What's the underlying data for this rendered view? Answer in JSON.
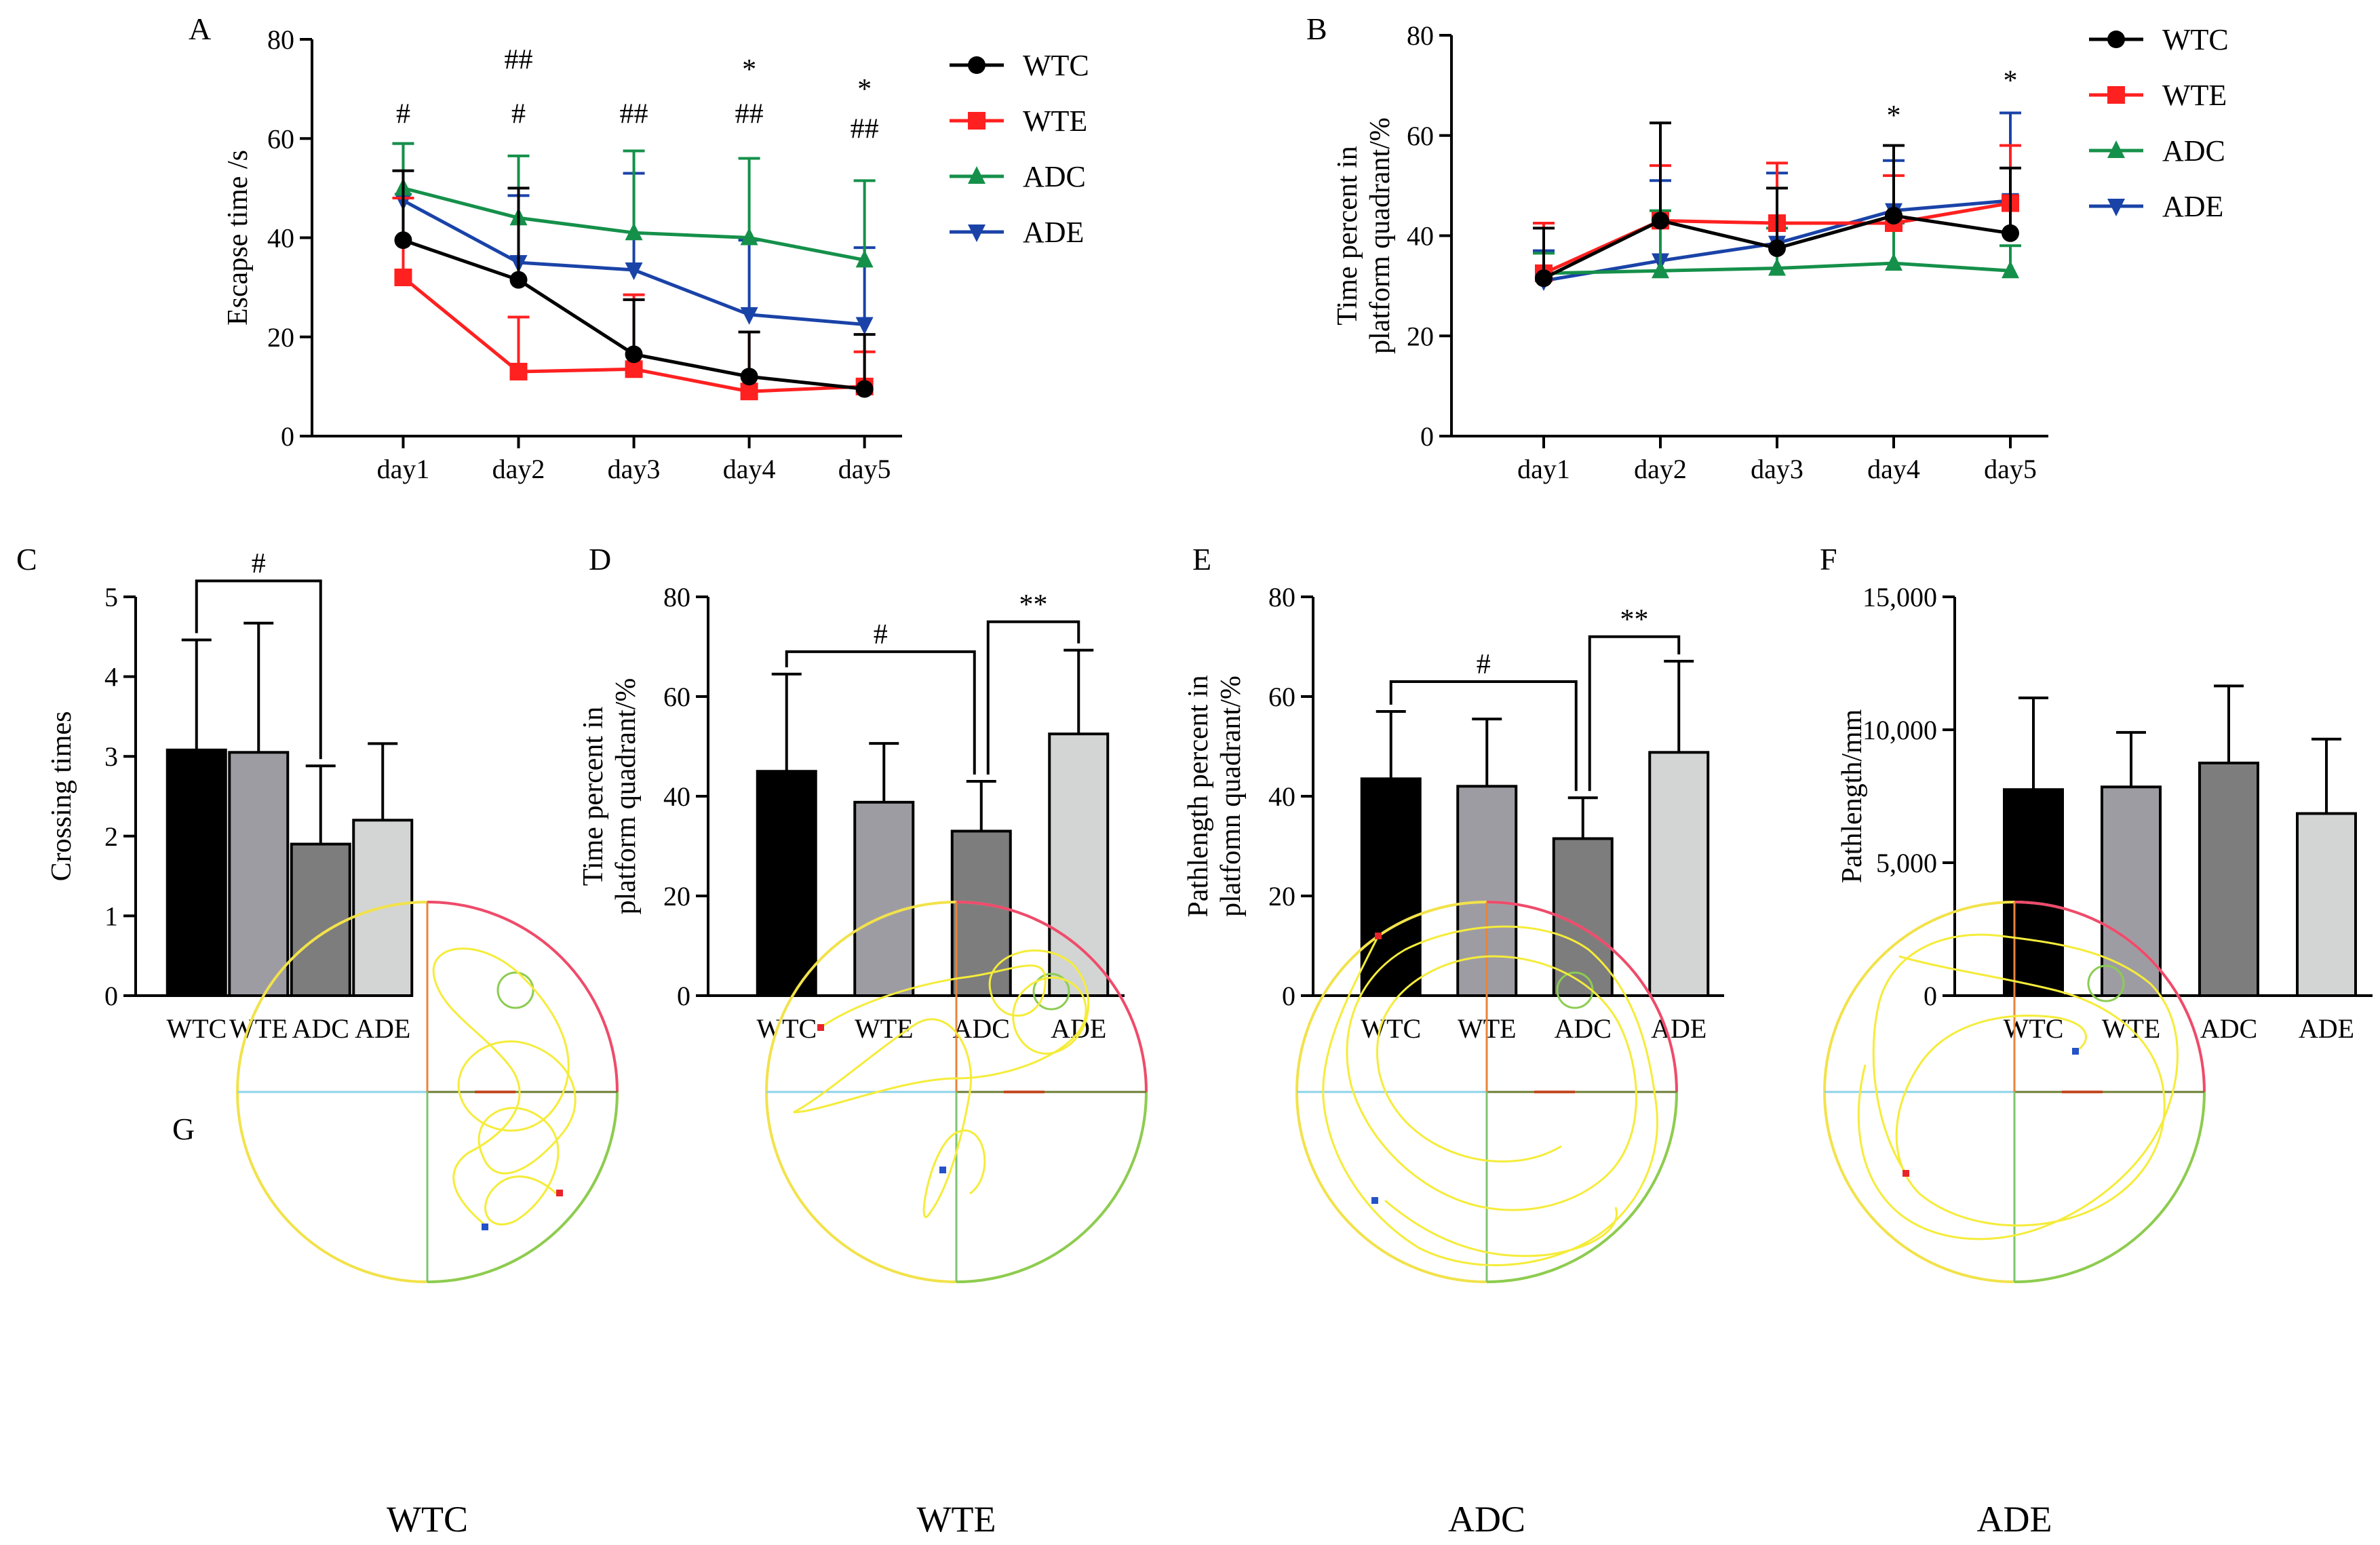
{
  "colors": {
    "WTC": "#000000",
    "WTE": "#ff2020",
    "ADC": "#15904a",
    "ADE": "#1a43a8",
    "bar_WTC": "#000000",
    "bar_WTE": "#9e9ca3",
    "bar_ADC": "#7d7d7d",
    "bar_ADE": "#d2d5d3",
    "maze_outline": "#f2e24a",
    "maze_track": "#f5ec3a"
  },
  "panels": {
    "A": "A",
    "B": "B",
    "C": "C",
    "D": "D",
    "E": "E",
    "F": "F",
    "G": "G"
  },
  "chart_data": [
    {
      "id": "A",
      "type": "line",
      "title": "",
      "xlabel": "",
      "ylabel": "Escapse time /s",
      "x": [
        "day1",
        "day2",
        "day3",
        "day4",
        "day5"
      ],
      "ylim": [
        0,
        80
      ],
      "yticks": [
        "0",
        "20",
        "40",
        "60",
        "80"
      ],
      "legend": "right",
      "series": [
        {
          "name": "WTC",
          "marker": "circle",
          "values": [
            39.5,
            31.5,
            16.5,
            12,
            9.5
          ],
          "err": [
            14,
            18.5,
            11,
            9,
            11
          ]
        },
        {
          "name": "WTE",
          "marker": "square",
          "values": [
            32,
            13,
            13.5,
            9,
            10
          ],
          "err": [
            16,
            11,
            15,
            12,
            7
          ]
        },
        {
          "name": "ADC",
          "marker": "triangle-up",
          "values": [
            50,
            44,
            41,
            40,
            35.5
          ],
          "err": [
            9,
            12.5,
            16.5,
            16,
            16
          ]
        },
        {
          "name": "ADE",
          "marker": "triangle-down",
          "values": [
            47.5,
            35,
            33.5,
            24.5,
            22.5
          ],
          "err": [
            11.5,
            13.5,
            19.5,
            15,
            15.5
          ]
        }
      ],
      "annotations": [
        {
          "x": "day1",
          "y": 65,
          "text": "#"
        },
        {
          "x": "day2",
          "y": 76,
          "text": "##"
        },
        {
          "x": "day2",
          "y": 65,
          "text": "#"
        },
        {
          "x": "day3",
          "y": 65,
          "text": "##"
        },
        {
          "x": "day4",
          "y": 74,
          "text": "*"
        },
        {
          "x": "day4",
          "y": 65,
          "text": "##"
        },
        {
          "x": "day5",
          "y": 70,
          "text": "*"
        },
        {
          "x": "day5",
          "y": 62,
          "text": "##"
        }
      ]
    },
    {
      "id": "B",
      "type": "line",
      "title": "",
      "xlabel": "",
      "ylabel_lines": [
        "Time percent in",
        "platform quadrant/%"
      ],
      "x": [
        "day1",
        "day2",
        "day3",
        "day4",
        "day5"
      ],
      "ylim": [
        0,
        80
      ],
      "yticks": [
        "0",
        "20",
        "40",
        "60",
        "80"
      ],
      "legend": "right",
      "series": [
        {
          "name": "WTC",
          "marker": "circle",
          "values": [
            31.5,
            43,
            37.5,
            44,
            40.5
          ],
          "err": [
            10,
            19.5,
            12,
            14,
            13
          ]
        },
        {
          "name": "WTE",
          "marker": "square",
          "values": [
            32.5,
            43,
            42.5,
            42.5,
            46.5
          ],
          "err": [
            10,
            11,
            12,
            9.5,
            11.5
          ]
        },
        {
          "name": "ADC",
          "marker": "triangle-up",
          "values": [
            32.5,
            33,
            33.5,
            34.5,
            33
          ],
          "err": [
            4,
            12,
            8,
            8,
            5
          ]
        },
        {
          "name": "ADE",
          "marker": "triangle-down",
          "values": [
            31,
            35,
            38.5,
            45,
            47
          ],
          "err": [
            6,
            16,
            14,
            10,
            17.5
          ]
        }
      ],
      "annotations": [
        {
          "x": "day4",
          "y": 64,
          "text": "*"
        },
        {
          "x": "day5",
          "y": 71,
          "text": "*"
        }
      ]
    },
    {
      "id": "C",
      "type": "bar",
      "ylabel": "Crossing times",
      "categories": [
        "WTC",
        "WTE",
        "ADC",
        "ADE"
      ],
      "values": [
        3.08,
        3.05,
        1.9,
        2.2
      ],
      "err": [
        1.38,
        1.62,
        0.98,
        0.96
      ],
      "ylim": [
        0,
        5
      ],
      "yticks": [
        "0",
        "1",
        "2",
        "3",
        "4",
        "5"
      ],
      "brackets": [
        {
          "from": "WTC",
          "to": "ADC",
          "y": 5.2,
          "text": "#"
        }
      ]
    },
    {
      "id": "D",
      "type": "bar",
      "ylabel_lines": [
        "Time percent in",
        "platform quadrant/%"
      ],
      "categories": [
        "WTC",
        "WTE",
        "ADC",
        "ADE"
      ],
      "values": [
        45,
        38.8,
        33,
        52.5
      ],
      "err": [
        19.5,
        11.8,
        10,
        16.8
      ],
      "ylim": [
        0,
        80
      ],
      "yticks": [
        "0",
        "20",
        "40",
        "60",
        "80"
      ],
      "brackets": [
        {
          "from": "WTC",
          "to": "ADC",
          "y": 69,
          "text": "#"
        },
        {
          "from": "ADC",
          "to": "ADE",
          "y": 75,
          "text": "**"
        }
      ]
    },
    {
      "id": "E",
      "type": "bar",
      "ylabel_lines": [
        "Pathlength percent in",
        "platfomn quadrant/%"
      ],
      "categories": [
        "WTC",
        "WTE",
        "ADC",
        "ADE"
      ],
      "values": [
        43.5,
        42,
        31.5,
        48.8
      ],
      "err": [
        13.5,
        13.5,
        8.2,
        18.3
      ],
      "ylim": [
        0,
        80
      ],
      "yticks": [
        "0",
        "20",
        "40",
        "60",
        "80"
      ],
      "brackets": [
        {
          "from": "WTC",
          "to": "ADC",
          "y": 63,
          "text": "#"
        },
        {
          "from": "ADC",
          "to": "ADE",
          "y": 72,
          "text": "**"
        }
      ]
    },
    {
      "id": "F",
      "type": "bar",
      "ylabel": "Pathlength/mm",
      "categories": [
        "WTC",
        "WTE",
        "ADC",
        "ADE"
      ],
      "values": [
        7750,
        7850,
        8750,
        6850
      ],
      "err": [
        3450,
        2050,
        2900,
        2800
      ],
      "ylim": [
        0,
        15000
      ],
      "yticks": [
        "0",
        "5,000",
        "10,000",
        "15,000"
      ]
    }
  ],
  "maze_labels": [
    "WTC",
    "WTE",
    "ADC",
    "ADE"
  ]
}
